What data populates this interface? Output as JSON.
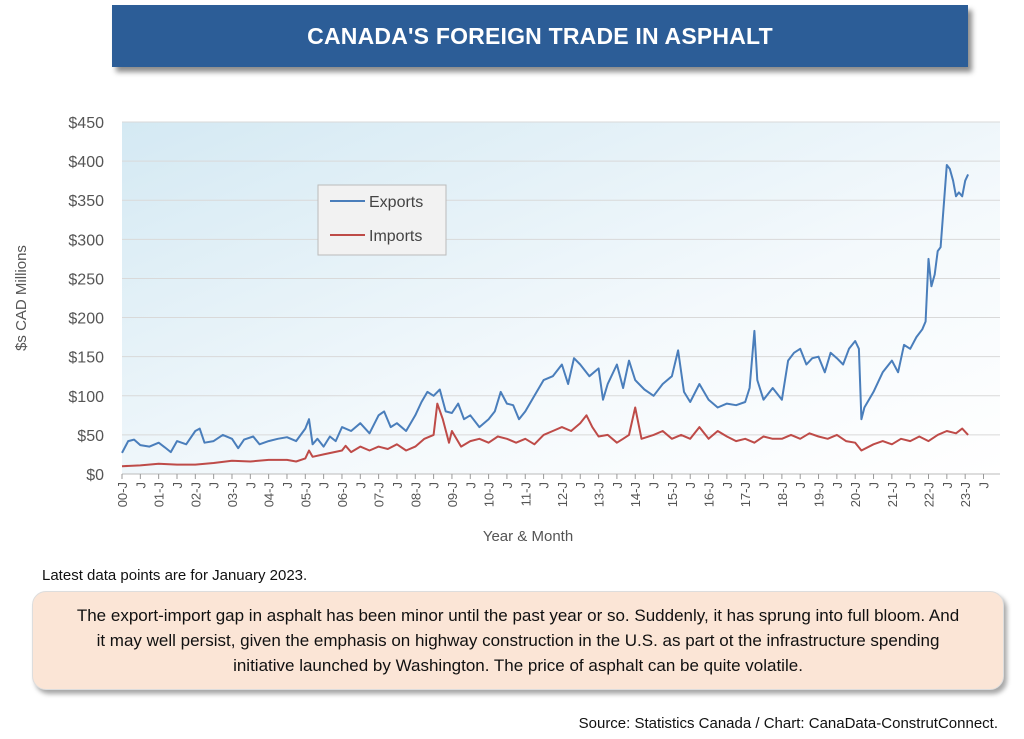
{
  "title": "CANADA'S FOREIGN TRADE IN ASPHALT",
  "note": "Latest data points are for January 2023.",
  "commentary": "The export-import gap in asphalt has been minor until the past year or so. Suddenly, it has sprung into full bloom. And it may well persist, given the emphasis on highway construction in the U.S. as part ot the infrastructure spending initiative launched by Washington. The price of asphalt can be quite volatile.",
  "source": "Source: Statistics Canada / Chart: CanaData-ConstrutConnect.",
  "chart_data": {
    "type": "line",
    "xlabel": "Year & Month",
    "ylabel": "$s CAD Millions",
    "ylim": [
      0,
      450
    ],
    "yticks": [
      "$0",
      "$50",
      "$100",
      "$150",
      "$200",
      "$250",
      "$300",
      "$350",
      "$400",
      "$450"
    ],
    "xticks": [
      "00-J",
      "J",
      "01-J",
      "J",
      "02-J",
      "J",
      "03-J",
      "J",
      "04-J",
      "J",
      "05-J",
      "J",
      "06-J",
      "J",
      "07-J",
      "J",
      "08-J",
      "J",
      "09-J",
      "J",
      "10-J",
      "J",
      "11-J",
      "J",
      "12-J",
      "J",
      "13-J",
      "J",
      "14-J",
      "J",
      "15-J",
      "J",
      "16-J",
      "J",
      "17-J",
      "J",
      "18-J",
      "J",
      "19-J",
      "J",
      "20-J",
      "J",
      "21-J",
      "J",
      "22-J",
      "J",
      "23-J",
      "J"
    ],
    "grid": true,
    "legend_position": "upper-left",
    "colors": {
      "exports": "#4a7ebb",
      "imports": "#be4b48"
    },
    "series": [
      {
        "name": "Exports",
        "points": [
          [
            2000.0,
            27
          ],
          [
            2000.17,
            42
          ],
          [
            2000.33,
            44
          ],
          [
            2000.5,
            37
          ],
          [
            2000.75,
            35
          ],
          [
            2001.0,
            40
          ],
          [
            2001.17,
            34
          ],
          [
            2001.33,
            28
          ],
          [
            2001.5,
            42
          ],
          [
            2001.75,
            38
          ],
          [
            2002.0,
            55
          ],
          [
            2002.12,
            58
          ],
          [
            2002.25,
            40
          ],
          [
            2002.5,
            42
          ],
          [
            2002.75,
            50
          ],
          [
            2003.0,
            45
          ],
          [
            2003.17,
            33
          ],
          [
            2003.33,
            44
          ],
          [
            2003.58,
            48
          ],
          [
            2003.75,
            38
          ],
          [
            2004.0,
            42
          ],
          [
            2004.25,
            45
          ],
          [
            2004.5,
            47
          ],
          [
            2004.75,
            42
          ],
          [
            2005.0,
            58
          ],
          [
            2005.1,
            70
          ],
          [
            2005.2,
            38
          ],
          [
            2005.33,
            45
          ],
          [
            2005.5,
            35
          ],
          [
            2005.67,
            48
          ],
          [
            2005.83,
            42
          ],
          [
            2006.0,
            60
          ],
          [
            2006.25,
            55
          ],
          [
            2006.5,
            65
          ],
          [
            2006.75,
            52
          ],
          [
            2007.0,
            75
          ],
          [
            2007.15,
            80
          ],
          [
            2007.33,
            60
          ],
          [
            2007.5,
            65
          ],
          [
            2007.75,
            55
          ],
          [
            2008.0,
            75
          ],
          [
            2008.17,
            92
          ],
          [
            2008.33,
            105
          ],
          [
            2008.5,
            100
          ],
          [
            2008.67,
            108
          ],
          [
            2008.83,
            80
          ],
          [
            2009.0,
            78
          ],
          [
            2009.17,
            90
          ],
          [
            2009.33,
            70
          ],
          [
            2009.5,
            75
          ],
          [
            2009.75,
            60
          ],
          [
            2010.0,
            70
          ],
          [
            2010.17,
            80
          ],
          [
            2010.33,
            105
          ],
          [
            2010.5,
            90
          ],
          [
            2010.67,
            88
          ],
          [
            2010.83,
            70
          ],
          [
            2011.0,
            80
          ],
          [
            2011.25,
            100
          ],
          [
            2011.5,
            120
          ],
          [
            2011.75,
            125
          ],
          [
            2012.0,
            140
          ],
          [
            2012.17,
            115
          ],
          [
            2012.33,
            148
          ],
          [
            2012.5,
            140
          ],
          [
            2012.75,
            125
          ],
          [
            2013.0,
            135
          ],
          [
            2013.12,
            95
          ],
          [
            2013.25,
            115
          ],
          [
            2013.5,
            140
          ],
          [
            2013.67,
            110
          ],
          [
            2013.83,
            145
          ],
          [
            2014.0,
            120
          ],
          [
            2014.25,
            108
          ],
          [
            2014.5,
            100
          ],
          [
            2014.75,
            115
          ],
          [
            2015.0,
            125
          ],
          [
            2015.17,
            158
          ],
          [
            2015.33,
            105
          ],
          [
            2015.5,
            92
          ],
          [
            2015.75,
            115
          ],
          [
            2016.0,
            95
          ],
          [
            2016.25,
            85
          ],
          [
            2016.5,
            90
          ],
          [
            2016.75,
            88
          ],
          [
            2017.0,
            92
          ],
          [
            2017.12,
            110
          ],
          [
            2017.25,
            183
          ],
          [
            2017.33,
            120
          ],
          [
            2017.5,
            95
          ],
          [
            2017.75,
            110
          ],
          [
            2018.0,
            95
          ],
          [
            2018.17,
            145
          ],
          [
            2018.33,
            155
          ],
          [
            2018.5,
            160
          ],
          [
            2018.67,
            140
          ],
          [
            2018.83,
            148
          ],
          [
            2019.0,
            150
          ],
          [
            2019.17,
            130
          ],
          [
            2019.33,
            155
          ],
          [
            2019.5,
            148
          ],
          [
            2019.67,
            140
          ],
          [
            2019.83,
            160
          ],
          [
            2020.0,
            170
          ],
          [
            2020.1,
            160
          ],
          [
            2020.17,
            70
          ],
          [
            2020.25,
            85
          ],
          [
            2020.5,
            105
          ],
          [
            2020.75,
            130
          ],
          [
            2021.0,
            145
          ],
          [
            2021.17,
            130
          ],
          [
            2021.33,
            165
          ],
          [
            2021.5,
            160
          ],
          [
            2021.67,
            175
          ],
          [
            2021.83,
            185
          ],
          [
            2021.92,
            195
          ],
          [
            2022.0,
            275
          ],
          [
            2022.08,
            240
          ],
          [
            2022.17,
            255
          ],
          [
            2022.25,
            285
          ],
          [
            2022.33,
            290
          ],
          [
            2022.5,
            395
          ],
          [
            2022.58,
            390
          ],
          [
            2022.67,
            375
          ],
          [
            2022.75,
            355
          ],
          [
            2022.83,
            360
          ],
          [
            2022.92,
            355
          ],
          [
            2023.0,
            375
          ],
          [
            2023.08,
            383
          ]
        ]
      },
      {
        "name": "Imports",
        "points": [
          [
            2000.0,
            10
          ],
          [
            2000.5,
            11
          ],
          [
            2001.0,
            13
          ],
          [
            2001.5,
            12
          ],
          [
            2002.0,
            12
          ],
          [
            2002.5,
            14
          ],
          [
            2003.0,
            17
          ],
          [
            2003.5,
            16
          ],
          [
            2004.0,
            18
          ],
          [
            2004.5,
            18
          ],
          [
            2004.75,
            16
          ],
          [
            2005.0,
            20
          ],
          [
            2005.1,
            30
          ],
          [
            2005.2,
            22
          ],
          [
            2005.5,
            25
          ],
          [
            2006.0,
            30
          ],
          [
            2006.1,
            36
          ],
          [
            2006.25,
            28
          ],
          [
            2006.5,
            35
          ],
          [
            2006.75,
            30
          ],
          [
            2007.0,
            35
          ],
          [
            2007.25,
            32
          ],
          [
            2007.5,
            38
          ],
          [
            2007.75,
            30
          ],
          [
            2008.0,
            35
          ],
          [
            2008.25,
            45
          ],
          [
            2008.5,
            50
          ],
          [
            2008.6,
            90
          ],
          [
            2008.75,
            70
          ],
          [
            2008.92,
            40
          ],
          [
            2009.0,
            55
          ],
          [
            2009.25,
            35
          ],
          [
            2009.5,
            42
          ],
          [
            2009.75,
            45
          ],
          [
            2010.0,
            40
          ],
          [
            2010.25,
            48
          ],
          [
            2010.5,
            45
          ],
          [
            2010.75,
            40
          ],
          [
            2011.0,
            45
          ],
          [
            2011.25,
            38
          ],
          [
            2011.5,
            50
          ],
          [
            2011.75,
            55
          ],
          [
            2012.0,
            60
          ],
          [
            2012.25,
            55
          ],
          [
            2012.5,
            65
          ],
          [
            2012.67,
            75
          ],
          [
            2012.83,
            60
          ],
          [
            2013.0,
            48
          ],
          [
            2013.25,
            50
          ],
          [
            2013.5,
            40
          ],
          [
            2013.67,
            45
          ],
          [
            2013.83,
            50
          ],
          [
            2014.0,
            85
          ],
          [
            2014.17,
            45
          ],
          [
            2014.5,
            50
          ],
          [
            2014.75,
            55
          ],
          [
            2015.0,
            45
          ],
          [
            2015.25,
            50
          ],
          [
            2015.5,
            45
          ],
          [
            2015.75,
            60
          ],
          [
            2016.0,
            45
          ],
          [
            2016.25,
            55
          ],
          [
            2016.5,
            48
          ],
          [
            2016.75,
            42
          ],
          [
            2017.0,
            45
          ],
          [
            2017.25,
            40
          ],
          [
            2017.5,
            48
          ],
          [
            2017.75,
            45
          ],
          [
            2018.0,
            45
          ],
          [
            2018.25,
            50
          ],
          [
            2018.5,
            45
          ],
          [
            2018.75,
            52
          ],
          [
            2019.0,
            48
          ],
          [
            2019.25,
            45
          ],
          [
            2019.5,
            50
          ],
          [
            2019.75,
            42
          ],
          [
            2020.0,
            40
          ],
          [
            2020.17,
            30
          ],
          [
            2020.5,
            38
          ],
          [
            2020.75,
            42
          ],
          [
            2021.0,
            38
          ],
          [
            2021.25,
            45
          ],
          [
            2021.5,
            42
          ],
          [
            2021.75,
            48
          ],
          [
            2022.0,
            42
          ],
          [
            2022.25,
            50
          ],
          [
            2022.5,
            55
          ],
          [
            2022.75,
            52
          ],
          [
            2022.92,
            58
          ],
          [
            2023.08,
            50
          ]
        ]
      }
    ]
  }
}
